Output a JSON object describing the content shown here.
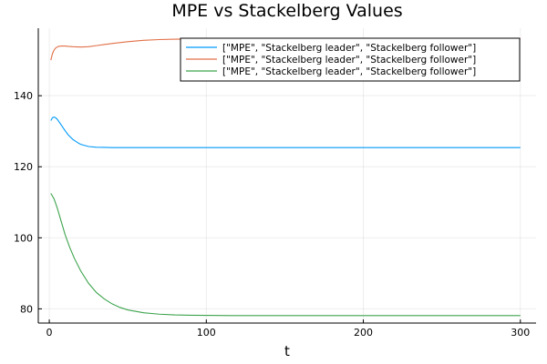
{
  "chart_data": {
    "type": "line",
    "title": "MPE vs Stackelberg Values",
    "xlabel": "t",
    "ylabel": "",
    "xlim": [
      -7,
      310
    ],
    "ylim": [
      76,
      159
    ],
    "xticks": [
      0,
      100,
      200,
      300
    ],
    "yticks": [
      80,
      100,
      120,
      140
    ],
    "grid": true,
    "legend_position": "top-right",
    "series": [
      {
        "name": "[\"MPE\", \"Stackelberg leader\", \"Stackelberg follower\"]",
        "color": "#009af9",
        "x": [
          1,
          2,
          3,
          4,
          5,
          6,
          8,
          10,
          12,
          15,
          18,
          20,
          25,
          30,
          35,
          40,
          50,
          60,
          80,
          100,
          150,
          200,
          250,
          300
        ],
        "y": [
          133.0,
          133.8,
          134.0,
          133.8,
          133.4,
          132.8,
          131.5,
          130.2,
          129.0,
          127.7,
          126.8,
          126.3,
          125.7,
          125.5,
          125.45,
          125.4,
          125.4,
          125.4,
          125.4,
          125.4,
          125.4,
          125.4,
          125.4,
          125.4
        ]
      },
      {
        "name": "[\"MPE\", \"Stackelberg leader\", \"Stackelberg follower\"]",
        "color": "#e26f46",
        "x": [
          1,
          2,
          3,
          4,
          5,
          6,
          8,
          10,
          12,
          15,
          20,
          25,
          30,
          35,
          40,
          50,
          60,
          70,
          80,
          100,
          150,
          200,
          250,
          300
        ],
        "y": [
          150.0,
          151.8,
          152.8,
          153.4,
          153.7,
          153.9,
          154.0,
          154.0,
          153.9,
          153.8,
          153.7,
          153.8,
          154.1,
          154.4,
          154.7,
          155.2,
          155.6,
          155.8,
          155.9,
          156.0,
          156.0,
          156.0,
          156.0,
          156.0
        ]
      },
      {
        "name": "[\"MPE\", \"Stackelberg leader\", \"Stackelberg follower\"]",
        "color": "#3da44d",
        "x": [
          1,
          3,
          5,
          7,
          10,
          13,
          16,
          20,
          25,
          30,
          35,
          40,
          45,
          50,
          60,
          70,
          80,
          90,
          100,
          120,
          150,
          200,
          250,
          300
        ],
        "y": [
          112.5,
          111.0,
          108.5,
          105.5,
          101.0,
          97.3,
          94.2,
          90.7,
          87.2,
          84.6,
          82.8,
          81.4,
          80.4,
          79.7,
          78.9,
          78.5,
          78.3,
          78.2,
          78.15,
          78.1,
          78.1,
          78.1,
          78.1,
          78.1
        ]
      }
    ]
  }
}
